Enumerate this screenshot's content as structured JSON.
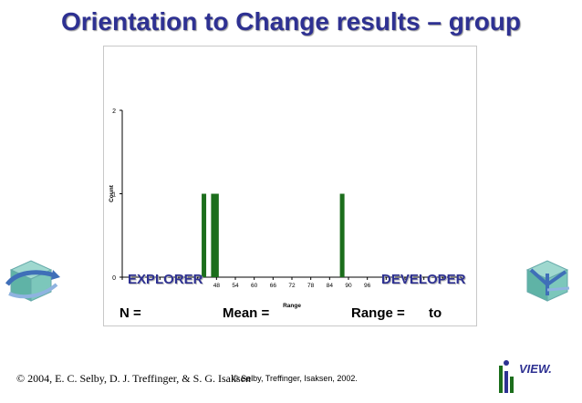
{
  "title": "Orientation to Change results – group",
  "chart_data": {
    "type": "bar",
    "xlabel": "Range",
    "ylabel": "Count",
    "x_ticks": [
      "18",
      "24",
      "30",
      "36",
      "42",
      "48",
      "54",
      "60",
      "66",
      "72",
      "78",
      "84",
      "90",
      "96",
      "102",
      "108",
      "114",
      "120",
      "126"
    ],
    "x_ticks_visible": [
      false,
      false,
      false,
      false,
      false,
      true,
      true,
      true,
      true,
      true,
      true,
      true,
      true,
      true,
      false,
      false,
      false,
      false,
      false
    ],
    "y_ticks": [
      0,
      1,
      2
    ],
    "xlim": [
      18,
      126
    ],
    "ylim": [
      0,
      2
    ],
    "bars": [
      {
        "x": 44,
        "value": 1
      },
      {
        "x": 47,
        "value": 1
      },
      {
        "x": 48,
        "value": 1
      },
      {
        "x": 88,
        "value": 1
      }
    ],
    "bar_color": "#1c6e1c"
  },
  "labels": {
    "left_pole": "EXPLORER",
    "right_pole": "DEVELOPER",
    "n_label": "N =",
    "mean_label": "Mean =",
    "range_label": "Range =",
    "to_label": "to"
  },
  "footer": {
    "copyright_left": "© 2004, E. C. Selby, D. J. Treffinger, & S. G. Isaksen",
    "copyright_mid": "© Selby, Treffinger, Isaksen, 2002."
  },
  "logo": {
    "text": "VIEW."
  },
  "icons": {
    "left": "explorer-cube-icon",
    "right": "developer-cube-icon"
  }
}
